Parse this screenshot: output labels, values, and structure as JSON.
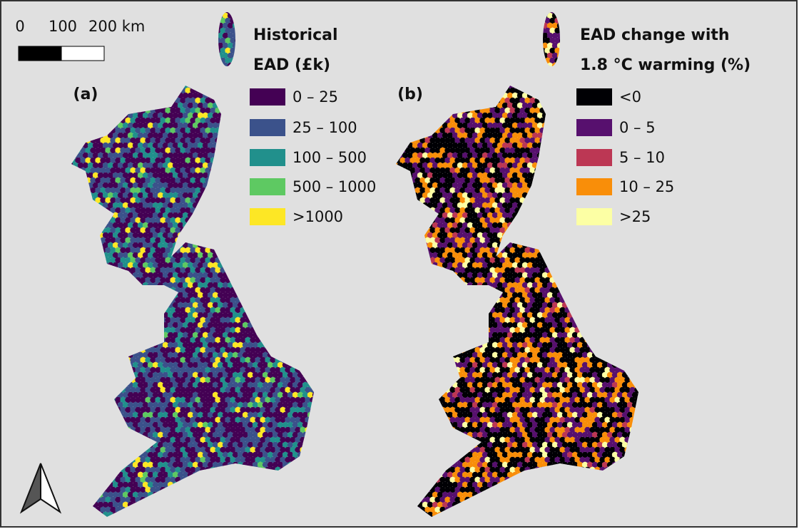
{
  "scale_bar": {
    "labels": [
      "0",
      "100",
      "200 km"
    ]
  },
  "panels": [
    {
      "label": "(a)",
      "legend": {
        "title_lines": [
          "Historical",
          "EAD (£k)"
        ],
        "items": [
          {
            "label": "0 – 25",
            "color": "#440154"
          },
          {
            "label": "25 – 100",
            "color": "#3b528b"
          },
          {
            "label": "100 – 500",
            "color": "#21908c"
          },
          {
            "label": "500 – 1000",
            "color": "#5ec962"
          },
          {
            "label": ">1000",
            "color": "#fde725"
          }
        ]
      }
    },
    {
      "label": "(b)",
      "legend": {
        "title_lines": [
          "EAD change with",
          "1.8 °C warming (%)"
        ],
        "items": [
          {
            "label": "<0",
            "color": "#000004"
          },
          {
            "label": "0 – 5",
            "color": "#57106e"
          },
          {
            "label": "5 – 10",
            "color": "#bc3754"
          },
          {
            "label": "10 – 25",
            "color": "#f98e09"
          },
          {
            "label": ">25",
            "color": "#fcffa4"
          }
        ]
      }
    }
  ]
}
